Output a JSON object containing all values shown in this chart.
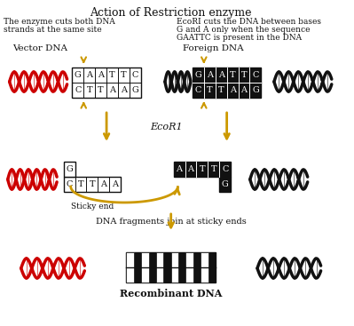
{
  "title": "Action of Restriction enzyme",
  "left_note_line1": "The enzyme cuts both DNA",
  "left_note_line2": "strands at the same site",
  "right_note_line1": "EcoRI cuts the DNA between bases",
  "right_note_line2": "G and A only when the sequence",
  "right_note_line3": "GAATTC is present in the DNA",
  "label_vector": "Vector DNA",
  "label_foreign": "Foreign DNA",
  "label_ecor1": "EcoR1",
  "label_sticky_end_left": "Sticky end",
  "label_sticky_end_right": "Sticky end",
  "label_join": "DNA fragments join at sticky ends",
  "label_recombinant": "Recombinant DNA",
  "seq_top": [
    "G",
    "A",
    "A",
    "T",
    "T",
    "C"
  ],
  "seq_bot": [
    "C",
    "T",
    "T",
    "A",
    "A",
    "G"
  ],
  "bg_color": "#ffffff",
  "dna_red_color": "#cc0000",
  "dna_black_color": "#111111",
  "arrow_color": "#cc9900",
  "box_white_fill": "#ffffff",
  "box_black_fill": "#111111",
  "text_white": "#ffffff",
  "text_black": "#111111"
}
